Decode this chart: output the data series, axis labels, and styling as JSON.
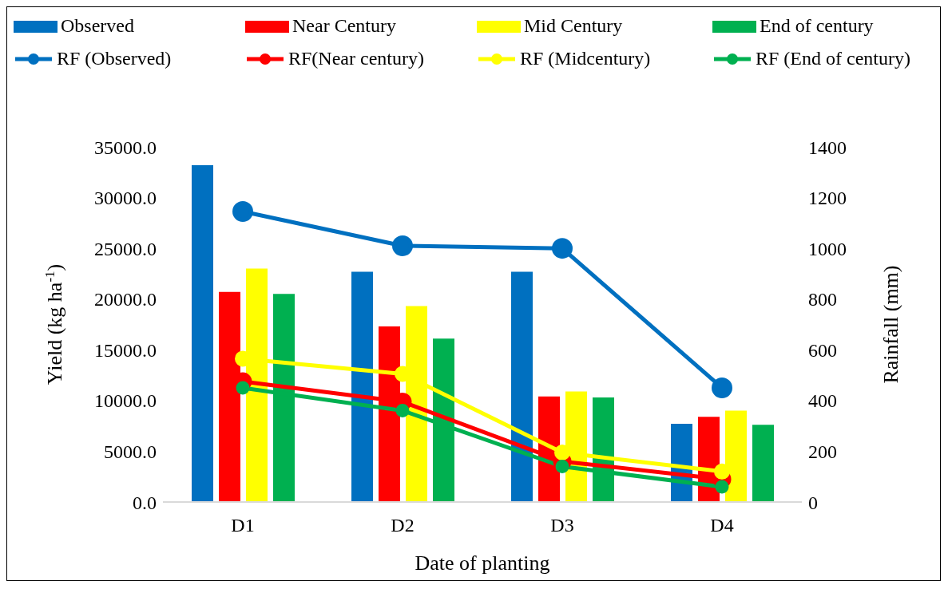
{
  "chart_data": {
    "type": "bar",
    "xlabel": "Date of planting",
    "ylabel": "Yield (kg ha$^{-1}$)",
    "y2label": "Rainfall (mm)",
    "categories": [
      "D1",
      "D2",
      "D3",
      "D4"
    ],
    "series": [
      {
        "name": "Observed",
        "color": "#0070c0",
        "values": [
          33200,
          22700,
          22700,
          7700
        ]
      },
      {
        "name": "Near Century",
        "color": "#ff0000",
        "values": [
          20700,
          17300,
          10400,
          8400
        ]
      },
      {
        "name": "Mid Century",
        "color": "#ffff00",
        "values": [
          23000,
          19300,
          10900,
          9000
        ]
      },
      {
        "name": "End of century",
        "color": "#00b050",
        "values": [
          20500,
          16100,
          10300,
          7600
        ]
      },
      {
        "name": "RF (Observed)",
        "type": "line",
        "axis": "y2",
        "color": "#0070c0",
        "values": [
          1145,
          1010,
          1000,
          450
        ]
      },
      {
        "name": "RF(Near century)",
        "type": "line",
        "axis": "y2",
        "color": "#ff0000",
        "values": [
          475,
          395,
          160,
          90
        ]
      },
      {
        "name": "RF (Midcentury)",
        "type": "line",
        "axis": "y2",
        "color": "#ffff00",
        "values": [
          565,
          505,
          195,
          120
        ]
      },
      {
        "name": "RF (End of century)",
        "type": "line",
        "axis": "y2",
        "color": "#00b050",
        "values": [
          450,
          360,
          140,
          60
        ]
      }
    ],
    "ylim": [
      0,
      35000
    ],
    "yticks": [
      {
        "value": 0,
        "label": "0.0"
      },
      {
        "value": 5000,
        "label": "5000.0"
      },
      {
        "value": 10000,
        "label": "10000.0"
      },
      {
        "value": 15000,
        "label": "15000.0"
      },
      {
        "value": 20000,
        "label": "20000.0"
      },
      {
        "value": 25000,
        "label": "25000.0"
      },
      {
        "value": 30000,
        "label": "30000.0"
      },
      {
        "value": 35000,
        "label": "35000.0"
      }
    ],
    "y2lim": [
      0,
      1400
    ],
    "y2ticks": [
      0,
      200,
      400,
      600,
      800,
      1000,
      1200,
      1400
    ],
    "legend": "top",
    "marker": "circle",
    "line_style": "solid"
  }
}
